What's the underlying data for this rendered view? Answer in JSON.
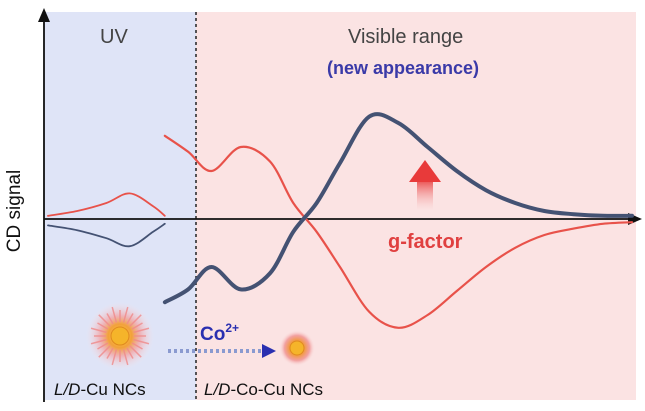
{
  "chart_data": {
    "type": "line",
    "ylabel": "CD signal",
    "xlabel": "",
    "regions": [
      {
        "name": "UV",
        "color": "#dfe4f7"
      },
      {
        "name": "Visible range",
        "note": "(new appearance)",
        "color": "#fbe3e3"
      }
    ],
    "series": [
      {
        "color": "#e8524a",
        "x": [
          0,
          0.5,
          1,
          1.4,
          1.8,
          2,
          2.001,
          2.4,
          2.8,
          3.3,
          3.8,
          4.2,
          4.6,
          5,
          5.5,
          6,
          6.5,
          7,
          7.5,
          8,
          8.5,
          9,
          9.5,
          10
        ],
        "values": [
          0.02,
          0.05,
          0.1,
          0.16,
          0.08,
          0.02,
          0.52,
          0.42,
          0.3,
          0.45,
          0.36,
          0.1,
          -0.08,
          -0.3,
          -0.58,
          -0.68,
          -0.6,
          -0.45,
          -0.3,
          -0.18,
          -0.1,
          -0.06,
          -0.03,
          -0.02
        ]
      },
      {
        "color": "#445273",
        "x": [
          0,
          0.5,
          1,
          1.4,
          1.8,
          2,
          2.001,
          2.4,
          2.8,
          3.3,
          3.8,
          4.2,
          4.6,
          5,
          5.5,
          6,
          6.5,
          7,
          7.5,
          8,
          8.5,
          9,
          9.5,
          10
        ],
        "values": [
          -0.04,
          -0.07,
          -0.12,
          -0.17,
          -0.08,
          -0.03,
          -0.52,
          -0.44,
          -0.3,
          -0.44,
          -0.34,
          -0.08,
          0.1,
          0.35,
          0.64,
          0.6,
          0.45,
          0.3,
          0.18,
          0.1,
          0.05,
          0.03,
          0.02,
          0.02
        ]
      }
    ],
    "xlim": [
      0,
      10
    ],
    "ylim": [
      -1,
      1
    ],
    "annotations": {
      "gfactor": "g-factor",
      "co_ion": "Co",
      "co_charge": "2+",
      "left_italic": "L/D",
      "left_rest": "-Cu NCs",
      "right_italic": "L/D",
      "right_rest": "-Co-Cu NCs"
    },
    "colors": {
      "uv_band": "#dfe4f7",
      "visible_band": "#fbe3e3",
      "red_curve": "#e8524a",
      "blue_curve": "#445273",
      "accent_blue": "#2a2fb0",
      "gfactor_red": "#e04040"
    }
  }
}
